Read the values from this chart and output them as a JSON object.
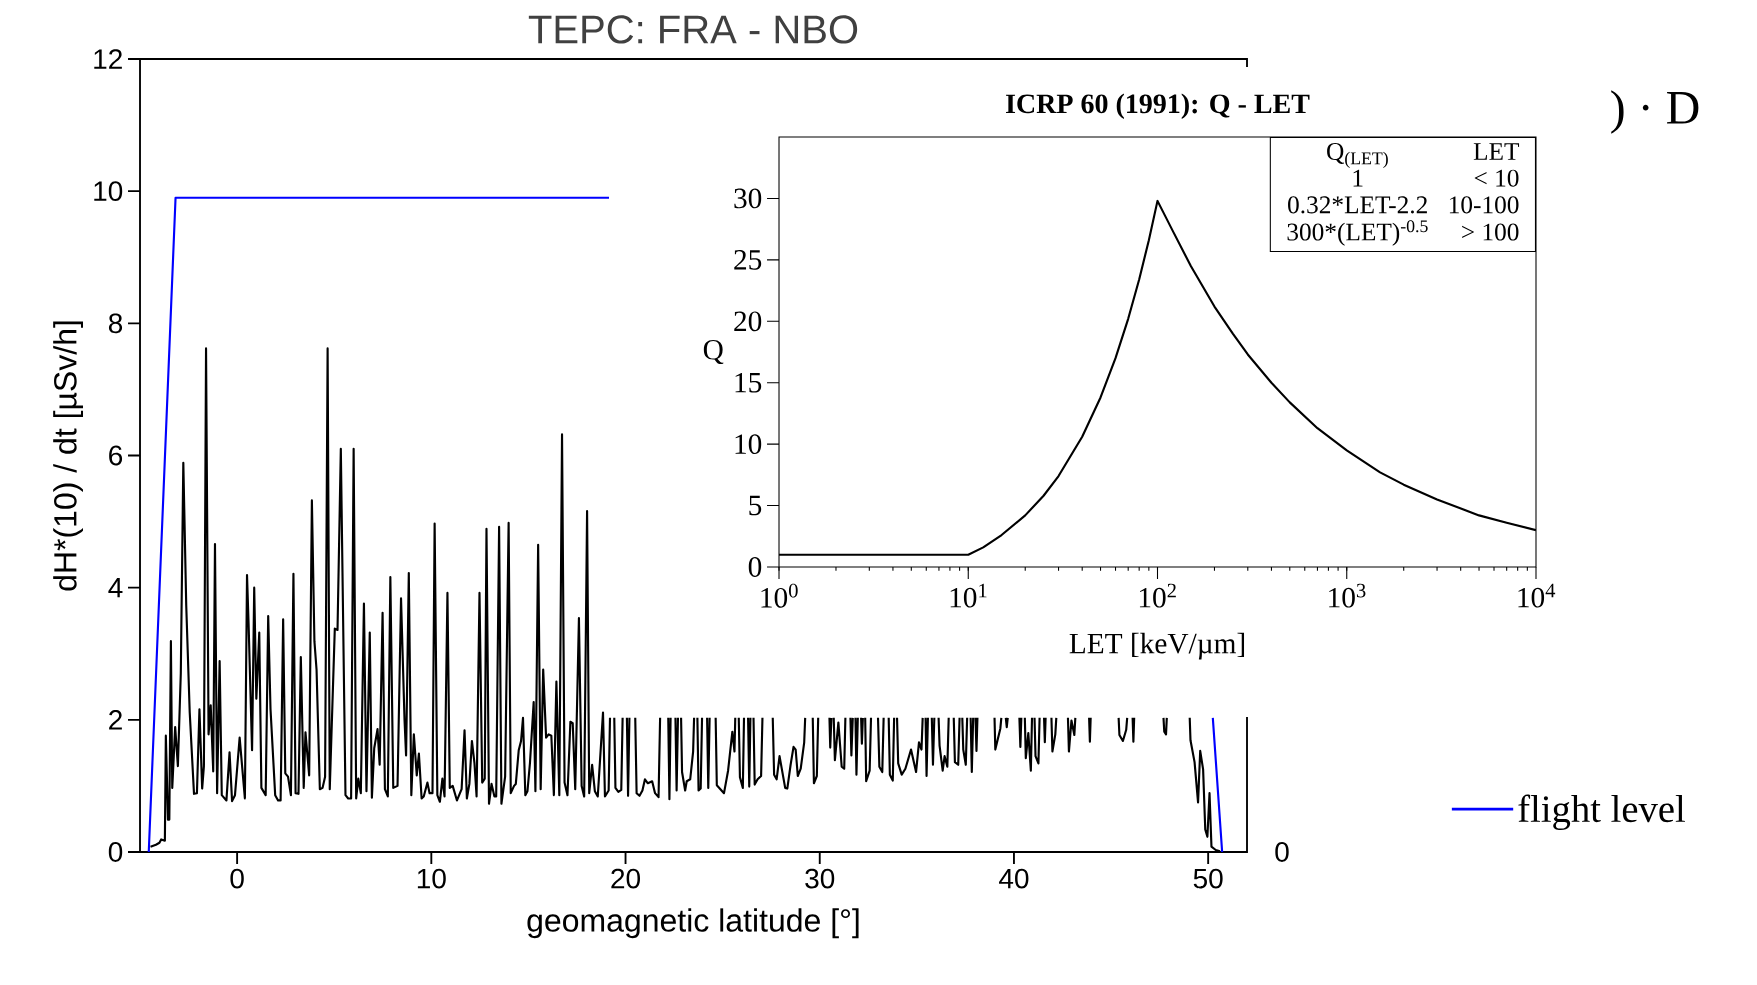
{
  "chart_data": [
    {
      "type": "line",
      "title": "TEPC:  FRA - NBO",
      "xlabel": "geomagnetic latitude [°]",
      "ylabel": "dH*(10) / dt  [µSv/h]",
      "xlim": [
        -5,
        52
      ],
      "ylim": [
        0,
        12
      ],
      "xticks": [
        0,
        10,
        20,
        30,
        40,
        50
      ],
      "yticks": [
        0,
        2,
        4,
        6,
        8,
        10,
        12
      ],
      "legend": "right",
      "annotations": [
        ") · D",
        "0"
      ],
      "series": [
        {
          "color": "#000000",
          "x": [
            -4.46,
            -4.18,
            -4.0,
            -3.91,
            -3.72,
            -3.67,
            -3.56,
            -3.49,
            -3.41,
            -3.34,
            -3.19,
            -3.05,
            -2.9,
            -2.77,
            -2.62,
            -2.44,
            -2.22,
            -2.07,
            -1.94,
            -1.8,
            -1.71,
            -1.6,
            -1.47,
            -1.36,
            -1.23,
            -1.14,
            -1.03,
            -0.9,
            -0.79,
            -0.55,
            -0.39,
            -0.26,
            -0.11,
            0.13,
            0.4,
            0.51,
            0.59,
            0.77,
            0.88,
            0.99,
            1.14,
            1.25,
            1.47,
            1.6,
            1.72,
            1.96,
            2.11,
            2.24,
            2.37,
            2.48,
            2.62,
            2.77,
            2.9,
            3.01,
            3.16,
            3.28,
            3.43,
            3.52,
            3.71,
            3.85,
            3.98,
            4.09,
            4.26,
            4.4,
            4.53,
            4.66,
            4.77,
            5.03,
            5.17,
            5.34,
            5.58,
            5.72,
            5.87,
            6.0,
            6.13,
            6.24,
            6.37,
            6.53,
            6.66,
            6.83,
            6.94,
            7.06,
            7.23,
            7.34,
            7.49,
            7.61,
            7.76,
            7.89,
            8.04,
            8.26,
            8.44,
            8.62,
            8.7,
            8.84,
            8.97,
            9.1,
            9.25,
            9.36,
            9.5,
            9.61,
            9.8,
            9.91,
            10.06,
            10.17,
            10.31,
            10.44,
            10.57,
            10.68,
            10.83,
            10.95,
            11.1,
            11.32,
            11.56,
            11.71,
            11.83,
            11.96,
            12.09,
            12.22,
            12.33,
            12.48,
            12.62,
            12.75,
            12.84,
            12.97,
            13.1,
            13.25,
            13.34,
            13.49,
            13.61,
            13.8,
            13.98,
            14.09,
            14.26,
            14.35,
            14.5,
            14.62,
            14.72,
            14.84,
            14.95,
            15.08,
            15.27,
            15.36,
            15.5,
            15.63,
            15.76,
            15.91,
            16.04,
            16.18,
            16.31,
            16.44,
            16.59,
            16.73,
            16.86,
            17.01,
            17.16,
            17.28,
            17.41,
            17.6,
            17.74,
            17.87,
            18.02,
            18.13,
            18.28,
            18.42,
            18.57,
            18.84,
            18.94,
            19.13,
            19.2,
            19.3,
            19.42,
            19.48,
            19.63,
            19.78,
            19.85,
            19.95,
            20.07,
            20.13,
            20.2,
            20.35,
            20.5,
            20.57,
            20.72,
            20.87,
            21.0,
            21.15,
            21.37,
            21.52,
            21.7,
            21.78,
            22.0,
            22.2,
            22.26,
            22.32,
            22.45,
            22.57,
            22.63,
            22.7,
            22.8,
            22.86,
            22.91,
            23.07,
            23.15,
            23.33,
            23.48,
            23.53,
            23.6,
            23.7,
            23.76,
            23.87,
            23.94,
            24.1,
            24.2,
            24.26,
            24.33,
            24.5,
            24.64,
            24.7,
            25.07,
            25.28,
            25.5,
            25.61,
            25.65,
            25.75,
            25.83,
            25.89,
            26.04,
            26.1,
            26.2,
            26.31,
            26.37,
            26.43,
            26.5,
            26.59,
            26.65,
            26.8,
            26.98,
            27.05,
            27.3,
            27.58,
            27.65,
            27.78,
            27.93,
            28.22,
            28.33,
            28.5,
            28.65,
            28.76,
            28.87,
            29.02,
            29.2,
            29.25,
            29.45,
            29.64,
            29.7,
            29.85,
            29.92,
            30.2,
            30.5,
            30.54,
            30.6,
            30.65,
            30.72,
            30.78,
            30.96,
            31.13,
            31.26,
            31.32,
            31.45,
            31.58,
            31.63,
            31.7,
            31.78,
            31.84,
            31.89,
            31.96,
            32.05,
            32.13,
            32.17,
            32.22,
            32.3,
            32.34,
            32.39,
            32.57,
            32.64,
            32.8,
            33.0,
            33.07,
            33.22,
            33.29,
            33.4,
            33.55,
            33.61,
            33.76,
            33.83,
            33.9,
            33.98,
            34.04,
            34.22,
            34.41,
            34.7,
            34.96,
            35.11,
            35.24,
            35.3,
            35.38,
            35.45,
            35.5,
            35.57,
            35.68,
            35.77,
            35.83,
            35.9,
            36.0,
            36.12,
            36.17,
            36.33,
            36.43,
            36.57,
            36.64,
            36.75,
            36.9,
            36.96,
            37.13,
            37.2,
            37.27,
            37.34,
            37.39,
            37.52,
            37.59,
            37.7,
            37.77,
            37.83,
            37.9,
            37.95,
            38.02,
            38.07,
            38.12,
            38.5,
            39.0,
            39.04,
            39.3,
            39.35,
            39.5,
            39.58,
            39.63,
            39.68,
            40.0,
            40.28,
            40.33,
            40.38,
            40.5,
            40.56,
            40.61,
            40.74,
            40.87,
            40.93,
            41.0,
            41.06,
            41.11,
            41.26,
            41.32,
            41.45,
            41.55,
            41.59,
            41.63,
            41.8,
            41.93,
            41.98,
            42.13,
            42.18,
            42.5,
            42.78,
            42.83,
            42.96,
            43.11,
            43.16,
            43.5,
            43.87,
            43.91,
            43.95,
            44.7,
            45.39,
            45.43,
            45.61,
            45.78,
            45.83,
            46.0,
            46.11,
            46.15,
            46.19,
            47.0,
            47.7,
            47.74,
            47.83,
            47.87,
            48.5,
            49.05,
            49.09,
            49.3,
            49.48,
            49.59,
            49.74,
            49.85,
            49.96,
            50.07,
            50.17,
            50.39,
            50.61
          ],
          "values": [
            0.08,
            0.11,
            0.14,
            0.19,
            0.17,
            1.76,
            0.49,
            0.49,
            3.19,
            0.97,
            1.89,
            1.3,
            2.7,
            5.89,
            3.73,
            2.11,
            0.88,
            0.89,
            2.16,
            0.96,
            1.3,
            7.62,
            1.78,
            2.22,
            1.22,
            4.66,
            0.89,
            2.89,
            0.86,
            0.78,
            1.51,
            0.77,
            0.86,
            1.73,
            0.81,
            4.19,
            3.46,
            1.54,
            4.0,
            2.32,
            3.32,
            0.97,
            0.86,
            3.57,
            2.16,
            0.86,
            0.78,
            0.78,
            3.52,
            1.19,
            1.14,
            0.86,
            4.21,
            0.89,
            0.88,
            2.95,
            0.97,
            1.81,
            1.16,
            5.32,
            3.19,
            2.76,
            0.95,
            0.97,
            1.14,
            7.62,
            0.95,
            3.38,
            3.36,
            6.1,
            0.86,
            0.81,
            0.81,
            6.1,
            0.81,
            1.11,
            0.89,
            3.76,
            0.92,
            3.32,
            0.82,
            1.57,
            1.86,
            1.32,
            3.62,
            0.95,
            0.84,
            4.16,
            0.97,
            1.0,
            3.84,
            2.0,
            1.46,
            4.22,
            0.86,
            1.78,
            1.16,
            1.49,
            0.81,
            0.84,
            1.05,
            0.89,
            0.89,
            4.97,
            0.86,
            0.76,
            1.11,
            0.84,
            3.92,
            0.97,
            1.0,
            0.78,
            0.95,
            1.84,
            0.81,
            1.03,
            1.68,
            1.35,
            0.84,
            3.92,
            1.05,
            1.11,
            4.89,
            0.73,
            1.03,
            0.84,
            0.84,
            4.92,
            0.73,
            1.14,
            4.98,
            0.89,
            1.0,
            1.03,
            1.54,
            1.68,
            2.03,
            0.86,
            0.92,
            1.35,
            2.27,
            0.92,
            4.65,
            0.95,
            2.76,
            1.73,
            1.78,
            1.76,
            0.86,
            2.58,
            0.86,
            6.32,
            1.05,
            0.86,
            1.97,
            1.95,
            0.95,
            3.54,
            1.0,
            0.84,
            5.16,
            0.89,
            1.32,
            0.92,
            0.84,
            2.11,
            0.84,
            0.93,
            2.03,
            null,
            2.03,
            0.97,
            0.91,
            0.94,
            2.03,
            null,
            2.03,
            0.85,
            2.03,
            null,
            2.03,
            0.89,
            0.85,
            0.93,
            1.1,
            1.04,
            1.07,
            0.89,
            0.83,
            2.03,
            null,
            2.03,
            0.8,
            2.03,
            null,
            2.03,
            0.93,
            2.03,
            null,
            2.03,
            1.21,
            0.93,
            1.07,
            1.1,
            1.52,
            2.03,
            null,
            2.03,
            0.93,
            0.96,
            2.03,
            null,
            2.03,
            0.97,
            2.03,
            null,
            2.03,
            1.01,
            0.89,
            1.23,
            1.82,
            1.52,
            2.03,
            null,
            2.03,
            1.13,
            0.97,
            2.03,
            null,
            2.03,
            0.99,
            2.03,
            null,
            2.03,
            1.02,
            1.1,
            1.15,
            2.03,
            null,
            2.03,
            1.17,
            1.1,
            1.45,
            0.97,
            0.96,
            1.32,
            1.59,
            1.55,
            1.15,
            1.26,
            1.66,
            2.03,
            null,
            2.03,
            1.04,
            1.15,
            2.03,
            null,
            2.03,
            1.58,
            2.03,
            null,
            2.03,
            1.39,
            1.96,
            1.29,
            1.26,
            2.03,
            null,
            2.03,
            1.46,
            2.03,
            null,
            2.03,
            1.17,
            2.03,
            null,
            2.03,
            1.64,
            2.03,
            null,
            2.03,
            1.07,
            1.23,
            2.03,
            null,
            2.03,
            1.29,
            1.21,
            2.03,
            null,
            2.03,
            1.17,
            1.08,
            2.03,
            null,
            2.03,
            1.34,
            1.17,
            1.26,
            1.55,
            1.21,
            1.66,
            1.55,
            2.03,
            null,
            2.03,
            1.15,
            2.03,
            null,
            2.03,
            1.32,
            2.03,
            null,
            2.03,
            1.61,
            1.23,
            1.45,
            1.29,
            2.03,
            null,
            2.03,
            1.36,
            1.32,
            2.03,
            null,
            2.03,
            1.55,
            1.32,
            2.03,
            null,
            2.03,
            1.21,
            2.03,
            null,
            2.03,
            1.53,
            2.03,
            null,
            2.03,
            1.55,
            1.87,
            2.03,
            null,
            2.03,
            1.89,
            2.03,
            null,
            2.03,
            1.59,
            2.03,
            null,
            2.03,
            1.42,
            1.8,
            1.23,
            2.03,
            null,
            2.03,
            1.45,
            1.34,
            2.03,
            null,
            2.03,
            1.66,
            2.03,
            null,
            2.03,
            1.52,
            1.78,
            2.03,
            null,
            2.03,
            1.52,
            1.99,
            1.77,
            2.03,
            null,
            2.03,
            1.67,
            2.03,
            null,
            2.03,
            1.77,
            1.68,
            1.85,
            2.03,
            null,
            2.03,
            1.67,
            2.03,
            null,
            2.03,
            1.82,
            1.78,
            2.03,
            null,
            2.03,
            1.69,
            1.36,
            0.75,
            1.53,
            1.25,
            0.34,
            0.23,
            0.89,
            0.08,
            0.03,
            0.01
          ]
        },
        {
          "name": "flight level",
          "color": "#0000ff",
          "x": [
            -4.55,
            -3.17,
            19.16,
            35,
            50.24,
            50.72
          ],
          "values": [
            0,
            9.9,
            9.9,
            null,
            2.03,
            0
          ]
        }
      ]
    },
    {
      "type": "line",
      "title": "ICRP 60 (1991):  Q - LET",
      "xlabel": "LET  [keV/µm]",
      "ylabel": "Q",
      "log": "x",
      "xlim": [
        1,
        10000
      ],
      "ylim": [
        0,
        35
      ],
      "xticks": [
        {
          "value": 1,
          "label": "10$^{0}$"
        },
        {
          "value": 10,
          "label": "10$^{1}$"
        },
        {
          "value": 100,
          "label": "10$^{2}$"
        },
        {
          "value": 1000,
          "label": "10$^{3}$"
        },
        {
          "value": 10000,
          "label": "10$^{4}$"
        }
      ],
      "yticks": [
        0,
        5,
        10,
        15,
        20,
        25,
        30
      ],
      "annotations": [
        "Q$_{(LET)}$",
        "LET",
        "1",
        "< 10",
        "0.32*LET-2.2",
        "10-100",
        "300*(LET)$^{-0.5}$",
        "> 100"
      ],
      "series": [
        {
          "color": "#000000",
          "x": [
            1,
            10,
            12,
            15,
            20,
            25,
            30,
            40,
            50,
            60,
            70,
            80,
            90,
            100,
            120,
            150,
            200,
            250,
            300,
            400,
            500,
            700,
            1000,
            1500,
            2000,
            3000,
            5000,
            7000,
            10000
          ],
          "values": [
            1,
            1,
            1.6,
            2.6,
            4.2,
            5.8,
            7.4,
            10.6,
            13.8,
            17,
            20.2,
            23.4,
            26.6,
            29.8,
            27.4,
            24.5,
            21.2,
            19,
            17.3,
            15,
            13.4,
            11.3,
            9.5,
            7.7,
            6.7,
            5.5,
            4.2,
            3.6,
            3
          ]
        }
      ]
    }
  ]
}
